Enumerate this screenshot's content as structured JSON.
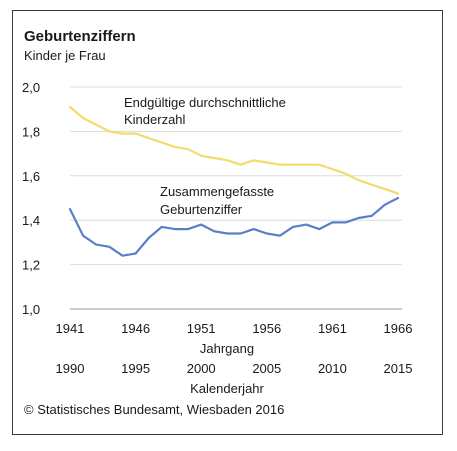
{
  "chart_data": {
    "type": "line",
    "title": "Geburtenziffern",
    "subtitle": "Kinder je Frau",
    "x": [
      1941,
      1942,
      1943,
      1944,
      1945,
      1946,
      1947,
      1948,
      1949,
      1950,
      1951,
      1952,
      1953,
      1954,
      1955,
      1956,
      1957,
      1958,
      1959,
      1960,
      1961,
      1962,
      1963,
      1964,
      1965,
      1966
    ],
    "x_alt": [
      1990,
      1991,
      1992,
      1993,
      1994,
      1995,
      1996,
      1997,
      1998,
      1999,
      2000,
      2001,
      2002,
      2003,
      2004,
      2005,
      2006,
      2007,
      2008,
      2009,
      2010,
      2011,
      2012,
      2013,
      2014,
      2015
    ],
    "xticks": [
      1941,
      1946,
      1951,
      1956,
      1961,
      1966
    ],
    "xticks_alt": [
      1990,
      1995,
      2000,
      2005,
      2010,
      2015
    ],
    "xlabel": "Jahrgang",
    "xlabel_alt": "Kalenderjahr",
    "ylim": [
      1.0,
      2.0
    ],
    "yticks": [
      "1,0",
      "1,2",
      "1,4",
      "1,6",
      "1,8",
      "2,0"
    ],
    "grid": true,
    "series": [
      {
        "name": "Endgültige durchschnittliche Kinderzahl",
        "name_lines": [
          "Endgültige durchschnittliche",
          "Kinderzahl"
        ],
        "color": "#f2dc6b",
        "values": [
          1.91,
          1.86,
          1.83,
          1.8,
          1.79,
          1.79,
          1.77,
          1.75,
          1.73,
          1.72,
          1.69,
          1.68,
          1.67,
          1.65,
          1.67,
          1.66,
          1.65,
          1.65,
          1.65,
          1.65,
          1.63,
          1.61,
          1.58,
          1.56,
          1.54,
          1.52
        ]
      },
      {
        "name": "Zusammengefasste Geburtenziffer",
        "name_lines": [
          "Zusammengefasste",
          "Geburtenziffer"
        ],
        "color": "#5b7ec7",
        "values": [
          1.45,
          1.33,
          1.29,
          1.28,
          1.24,
          1.25,
          1.32,
          1.37,
          1.36,
          1.36,
          1.38,
          1.35,
          1.34,
          1.34,
          1.36,
          1.34,
          1.33,
          1.37,
          1.38,
          1.36,
          1.39,
          1.39,
          1.41,
          1.42,
          1.47,
          1.5
        ]
      }
    ]
  },
  "source": "© Statistisches Bundesamt, Wiesbaden 2016"
}
